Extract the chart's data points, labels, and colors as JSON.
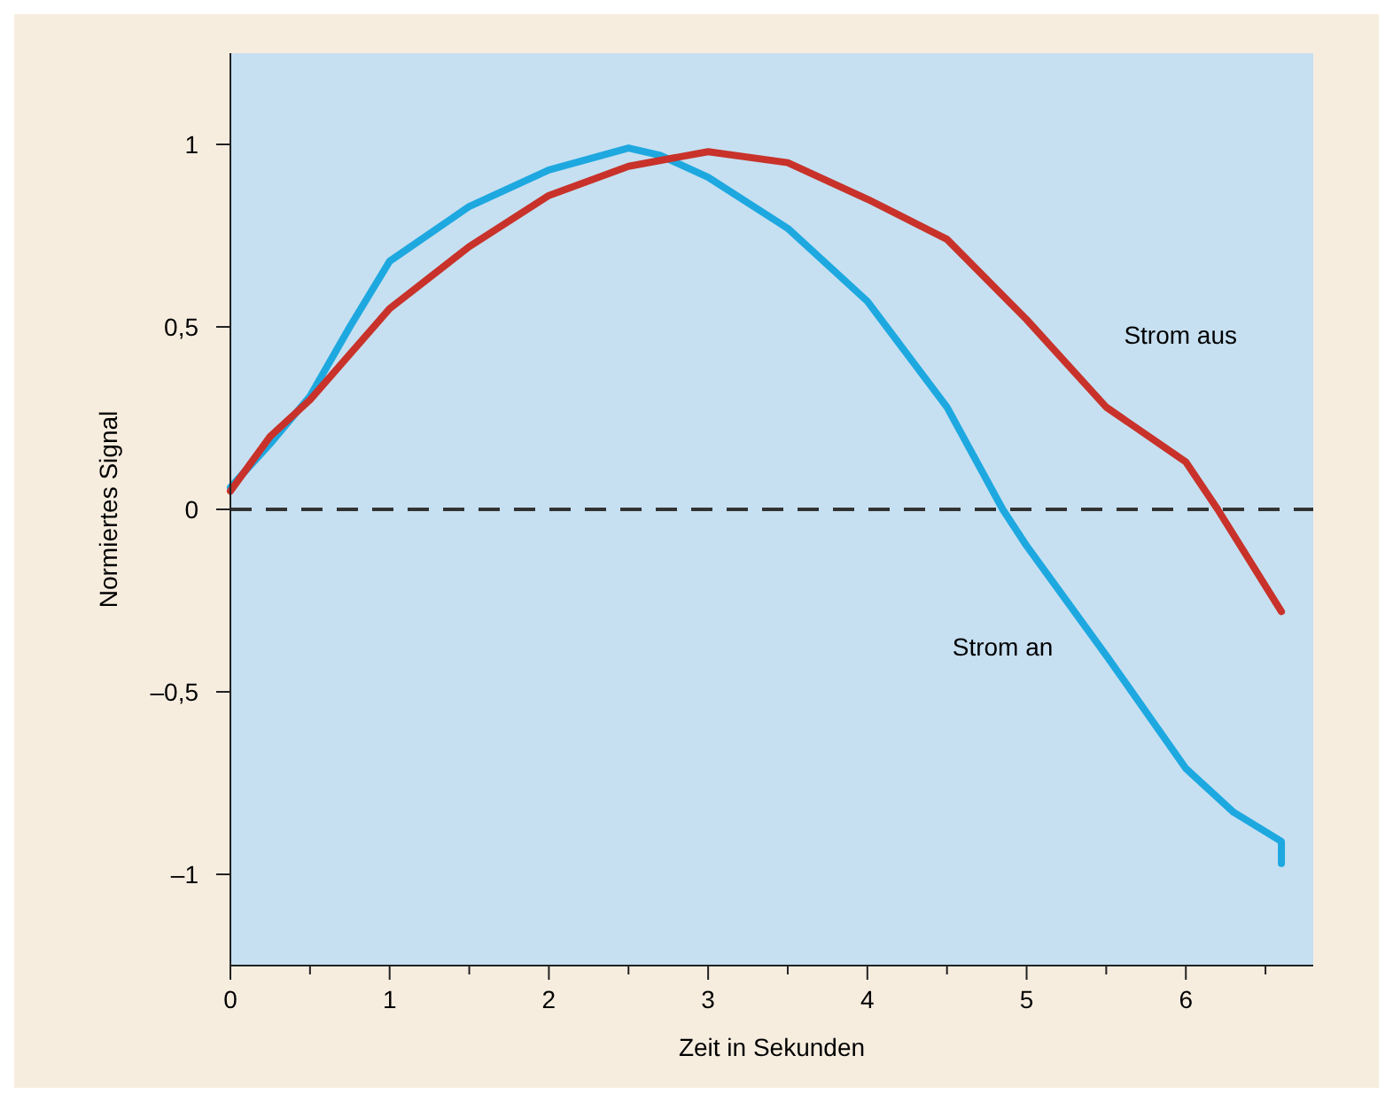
{
  "chart_data": {
    "type": "line",
    "xlabel": "Zeit in Sekunden",
    "ylabel": "Normiertes Signal",
    "xlim": [
      0,
      6.8
    ],
    "ylim": [
      -1.25,
      1.25
    ],
    "xticks": [
      0,
      {
        "value": 0.5,
        "label": null
      },
      1,
      {
        "value": 1.5,
        "label": null
      },
      2,
      {
        "value": 2.5,
        "label": null
      },
      3,
      {
        "value": 3.5,
        "label": null
      },
      4,
      {
        "value": 4.5,
        "label": null
      },
      5,
      {
        "value": 5.5,
        "label": null
      },
      6,
      {
        "value": 6.5,
        "label": null
      }
    ],
    "yticks": [
      {
        "value": -1,
        "label": "–1"
      },
      {
        "value": -0.5,
        "label": "–0,5"
      },
      0,
      {
        "value": 0.5,
        "label": "0,5"
      },
      1
    ],
    "grid": false,
    "marker": "none",
    "line_style": "solid",
    "ref_lines": [
      {
        "axis": "y",
        "value": 0,
        "color": "#333333",
        "line_style": "dashed"
      }
    ],
    "series": [
      {
        "name": "Strom an",
        "color": "#1ea8e0",
        "x": [
          0,
          0.25,
          0.5,
          0.75,
          1,
          1.5,
          2,
          2.5,
          2.7,
          3,
          3.5,
          4,
          4.5,
          4.85,
          5,
          5.5,
          6,
          6.3,
          6.6,
          6.6
        ],
        "values": [
          0.06,
          0.18,
          0.31,
          0.5,
          0.68,
          0.83,
          0.93,
          0.99,
          0.97,
          0.91,
          0.77,
          0.57,
          0.28,
          0,
          -0.1,
          -0.4,
          -0.71,
          -0.83,
          -0.91,
          -0.97
        ]
      },
      {
        "name": "Strom aus",
        "color": "#c8322a",
        "x": [
          0,
          0.25,
          0.5,
          1,
          1.5,
          2,
          2.5,
          3,
          3.5,
          4,
          4.5,
          5,
          5.5,
          6,
          6.2,
          6.6
        ],
        "values": [
          0.05,
          0.2,
          0.3,
          0.55,
          0.72,
          0.86,
          0.94,
          0.98,
          0.95,
          0.85,
          0.74,
          0.52,
          0.28,
          0.13,
          0,
          -0.28
        ]
      }
    ]
  }
}
